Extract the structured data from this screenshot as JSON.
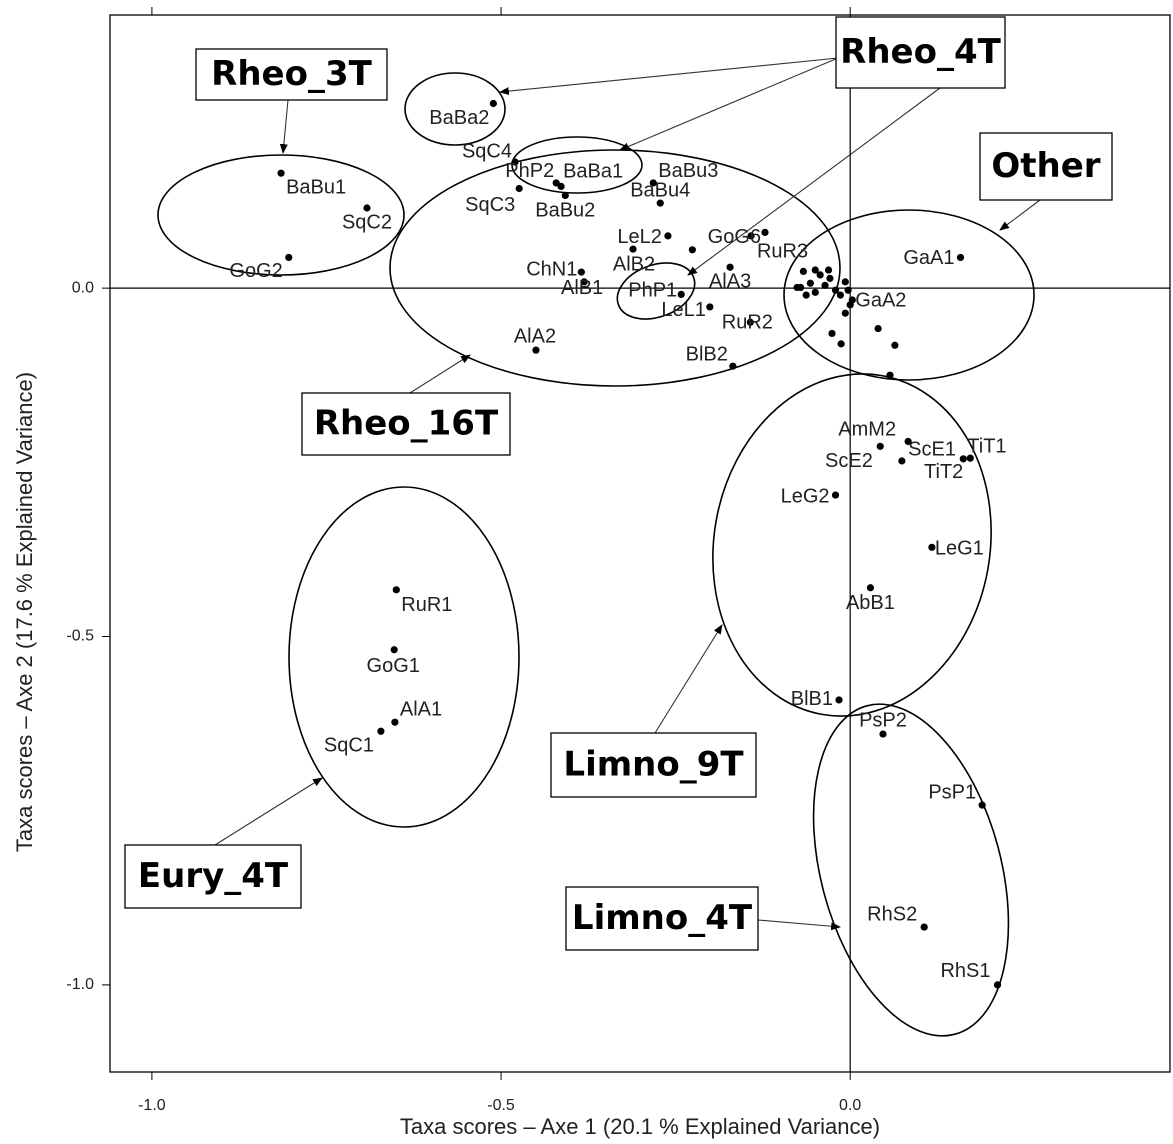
{
  "chart_data": {
    "type": "scatter",
    "x_label": "Taxa scores – Axe 1 (20.1 % Explained Variance)",
    "y_label": "Taxa scores – Axe 2 (17.6 % Explained Variance)",
    "xlim": [
      -1.06,
      0.458
    ],
    "ylim": [
      -1.125,
      0.392
    ],
    "xticks": [
      {
        "value": -1.0,
        "label": "-1.0"
      },
      {
        "value": -0.5,
        "label": "-0.5"
      },
      {
        "value": 0.0,
        "label": "0.0"
      }
    ],
    "yticks": [
      {
        "value": -1.0,
        "label": "-1.0"
      },
      {
        "value": -0.5,
        "label": "-0.5"
      },
      {
        "value": 0.0,
        "label": "0.0"
      }
    ],
    "color": "#000000",
    "series": [
      {
        "labels": [
          "BaBu1",
          "SqC2",
          "GoG2",
          "BaBa2",
          "SqC4",
          "PhP2",
          "BaBa1",
          "SqC3",
          "BaBu2",
          "BaBu3",
          "BaBu4",
          "LeL2",
          "GoG6",
          "RuR3",
          "ChN1",
          "AlB2",
          "AlB1",
          "PhP1",
          "AlA3",
          "LeL1",
          "RuR2",
          "AlA2",
          "BlB2",
          "GaA1",
          "GaA2",
          "AmM2",
          "ScE1",
          "ScE2",
          "TiT2",
          "TiT1",
          "LeG2",
          "LeG1",
          "AbB1",
          "BlB1",
          "PsP2",
          "PsP1",
          "RhS2",
          "RhS1",
          "RuR1",
          "GoG1",
          "AlA1",
          "SqC1",
          null,
          null,
          null,
          null,
          null,
          null,
          null,
          null,
          null,
          null,
          null,
          null,
          null,
          null,
          null,
          null,
          null,
          null,
          null,
          null,
          null,
          null,
          null
        ],
        "x": [
          -0.815,
          -0.692,
          -0.804,
          -0.511,
          -0.48,
          -0.421,
          -0.414,
          -0.474,
          -0.408,
          -0.282,
          -0.272,
          -0.261,
          -0.142,
          -0.122,
          -0.385,
          -0.311,
          -0.381,
          -0.242,
          -0.172,
          -0.201,
          -0.143,
          -0.45,
          -0.168,
          0.158,
          0.003,
          0.043,
          0.083,
          0.074,
          0.162,
          0.172,
          -0.021,
          0.117,
          0.029,
          -0.016,
          0.047,
          0.189,
          0.106,
          0.211,
          -0.65,
          -0.653,
          -0.652,
          -0.672,
          -0.226,
          -0.067,
          -0.057,
          -0.05,
          -0.043,
          -0.036,
          -0.029,
          -0.021,
          -0.007,
          -0.003,
          -0.063,
          -0.076,
          -0.05,
          -0.014,
          0.0,
          -0.007,
          -0.026,
          -0.013,
          0.04,
          0.064,
          0.057,
          -0.071,
          -0.031
        ],
        "y": [
          0.165,
          0.115,
          0.044,
          0.265,
          0.181,
          0.151,
          0.146,
          0.143,
          0.133,
          0.151,
          0.122,
          0.075,
          0.075,
          0.08,
          0.023,
          0.056,
          0.009,
          -0.009,
          0.03,
          -0.027,
          -0.049,
          -0.089,
          -0.112,
          0.044,
          -0.017,
          -0.227,
          -0.22,
          -0.248,
          -0.245,
          -0.244,
          -0.297,
          -0.372,
          -0.43,
          -0.591,
          -0.64,
          -0.742,
          -0.917,
          -1.0,
          -0.433,
          -0.519,
          -0.623,
          -0.636,
          0.055,
          0.024,
          0.007,
          0.026,
          0.019,
          0.004,
          0.014,
          -0.003,
          0.009,
          -0.003,
          -0.01,
          0.001,
          -0.006,
          -0.01,
          -0.024,
          -0.036,
          -0.065,
          -0.08,
          -0.058,
          -0.082,
          -0.125,
          0.001,
          0.026
        ]
      }
    ],
    "annotations": [
      {
        "text": "Rheo_3T"
      },
      {
        "text": "Rheo_4T"
      },
      {
        "text": "Other"
      },
      {
        "text": "Rheo_16T"
      },
      {
        "text": "Limno_9T"
      },
      {
        "text": "Eury_4T"
      },
      {
        "text": "Limno_4T"
      }
    ]
  }
}
